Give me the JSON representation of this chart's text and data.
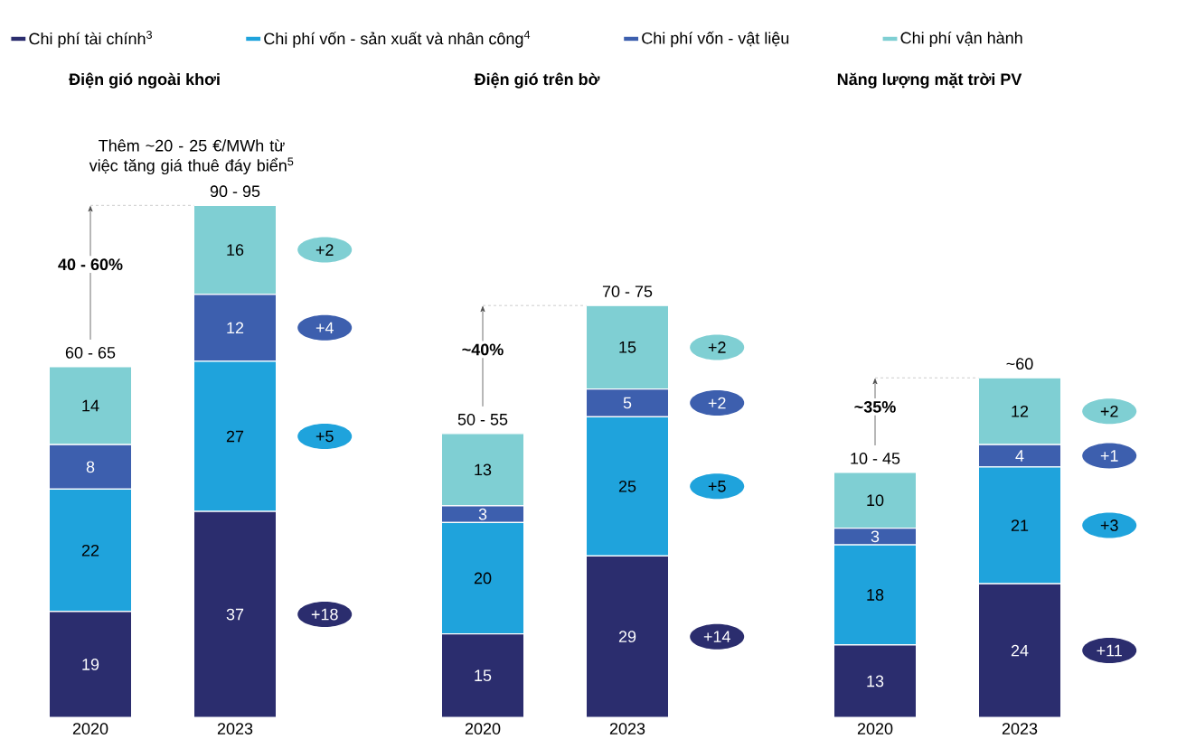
{
  "chart_data": [
    {
      "type": "bar",
      "stacked": true,
      "title": "Điện gió ngoài khơi",
      "categories": [
        "2020",
        "2023"
      ],
      "tick_labels": "x",
      "legend": "top",
      "data_labels": true,
      "series": [
        {
          "name": "Chi phí tài chính$^{3}$",
          "color": "#2b2d6e",
          "values": [
            19,
            37
          ]
        },
        {
          "name": "Chi phí vốn - sản xuất và nhân công$^{4}$",
          "color": "#1fa3dc",
          "values": [
            22,
            27
          ]
        },
        {
          "name": "Chi phí vốn - vật liệu",
          "color": "#3d5fae",
          "values": [
            8,
            12
          ]
        },
        {
          "name": "Chi phí vận hành",
          "color": "#7fcfd3",
          "values": [
            14,
            16
          ]
        }
      ],
      "totals": [
        "60 - 65",
        "90 - 95"
      ],
      "annotations": [
        "Thêm ~20 - 25 €/MWh từ việc tăng giá thuê đáy biển$^{5}$",
        "**40 - 60%**",
        "+18",
        "+5",
        "+4",
        "+2"
      ]
    },
    {
      "type": "bar",
      "stacked": true,
      "title": "Điện gió trên bờ",
      "categories": [
        "2020",
        "2023"
      ],
      "tick_labels": "x",
      "data_labels": true,
      "series": [
        {
          "color": "#2b2d6e",
          "values": [
            15,
            29
          ]
        },
        {
          "color": "#1fa3dc",
          "values": [
            20,
            25
          ]
        },
        {
          "color": "#3d5fae",
          "values": [
            3,
            5
          ]
        },
        {
          "color": "#7fcfd3",
          "values": [
            13,
            15
          ]
        }
      ],
      "totals": [
        "50 - 55",
        "70 - 75"
      ],
      "annotations": [
        "**~40%**",
        "+14",
        "+5",
        "+2",
        "+2"
      ]
    },
    {
      "type": "bar",
      "stacked": true,
      "title": "Năng lượng mặt trời PV",
      "categories": [
        "2020",
        "2023"
      ],
      "tick_labels": "x",
      "data_labels": true,
      "series": [
        {
          "color": "#2b2d6e",
          "values": [
            13,
            24
          ]
        },
        {
          "color": "#1fa3dc",
          "values": [
            18,
            21
          ]
        },
        {
          "color": "#3d5fae",
          "values": [
            3,
            4
          ]
        },
        {
          "color": "#7fcfd3",
          "values": [
            10,
            12
          ]
        }
      ],
      "totals": [
        "10 - 45",
        "~60"
      ],
      "annotations": [
        "**~35%**",
        "+11",
        "+3",
        "+1",
        "+2"
      ]
    }
  ]
}
